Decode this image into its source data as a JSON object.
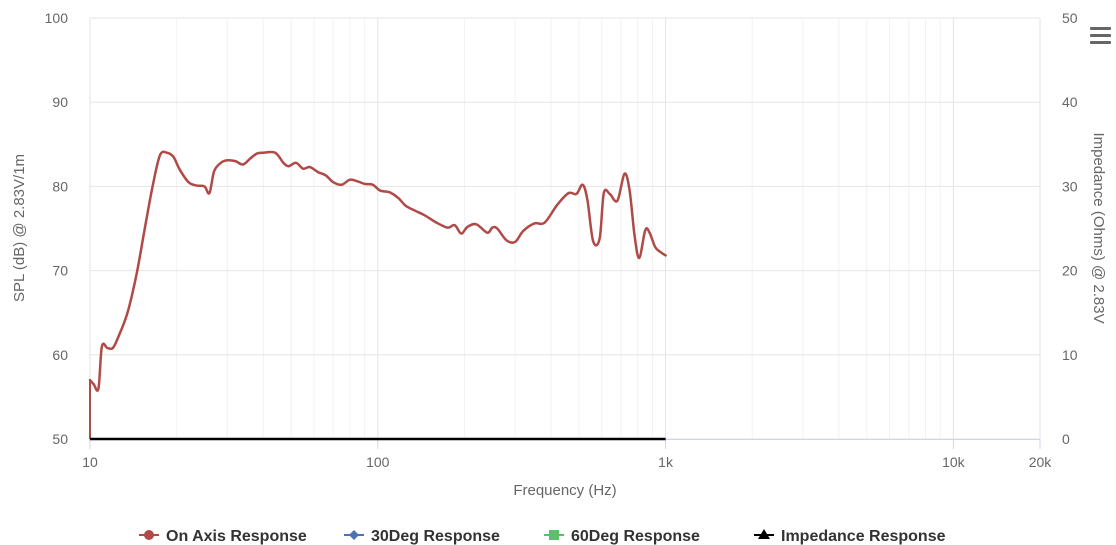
{
  "chart_data": {
    "type": "line",
    "x_scale": "log",
    "xlim": [
      10,
      20000
    ],
    "ylim_left": [
      50,
      100
    ],
    "ylim_right": [
      0,
      50
    ],
    "x_tick_values": [
      10,
      100,
      1000,
      10000,
      20000
    ],
    "x_tick_labels": [
      "10",
      "100",
      "1k",
      "10k",
      "20k"
    ],
    "y_left_ticks": [
      50,
      60,
      70,
      80,
      90,
      100
    ],
    "y_left_tick_labels": [
      "50",
      "60",
      "70",
      "80",
      "90",
      "100"
    ],
    "y_right_ticks": [
      0,
      10,
      20,
      30,
      40,
      50
    ],
    "y_right_tick_labels": [
      "0",
      "10",
      "20",
      "30",
      "40",
      "50"
    ],
    "xlabel": "Frequency (Hz)",
    "ylabel_left": "SPL (dB) @ 2.83V/1m",
    "ylabel_right": "Impedance (Ohms) @ 2.83V",
    "grid": true,
    "legend_position": "bottom-center",
    "series": [
      {
        "name": "On Axis Response",
        "color": "#b04a47",
        "marker": "circle",
        "axis": "left",
        "x": [
          10,
          10.3,
          10.7,
          11,
          11.5,
          12,
          12.5,
          13.5,
          14.5,
          15.5,
          16.5,
          17.5,
          18.5,
          19.5,
          20.5,
          22,
          23.5,
          25,
          26,
          27,
          28.5,
          30,
          32,
          34,
          36,
          38,
          40,
          44,
          47,
          49,
          52,
          55,
          58,
          62,
          66,
          70,
          75,
          80,
          85,
          90,
          96,
          102,
          110,
          118,
          125,
          135,
          145,
          160,
          175,
          185,
          195,
          205,
          220,
          240,
          250,
          260,
          280,
          300,
          320,
          350,
          380,
          420,
          460,
          490,
          515,
          535,
          560,
          590,
          610,
          640,
          680,
          720,
          750,
          780,
          810,
          850,
          880,
          920,
          960,
          1000
        ],
        "y": [
          57,
          56.5,
          56,
          61,
          60.8,
          60.8,
          62,
          65,
          69.5,
          75,
          80,
          83.7,
          84,
          83.5,
          82,
          80.5,
          80.1,
          80,
          79.2,
          81.8,
          82.8,
          83.1,
          83,
          82.6,
          83.3,
          83.9,
          84,
          84,
          82.8,
          82.4,
          82.8,
          82.1,
          82.3,
          81.7,
          81.3,
          80.5,
          80.2,
          80.8,
          80.6,
          80.3,
          80.2,
          79.5,
          79.3,
          78.6,
          77.7,
          77.1,
          76.6,
          75.7,
          75.1,
          75.4,
          74.4,
          75.2,
          75.5,
          74.5,
          75.1,
          75,
          73.6,
          73.4,
          74.7,
          75.6,
          75.7,
          77.8,
          79.2,
          79.1,
          80.2,
          78.4,
          73.5,
          73.8,
          79.2,
          79.1,
          78.3,
          81.5,
          79.5,
          74.2,
          71.5,
          74.8,
          74.5,
          72.8,
          72.2,
          71.8
        ]
      },
      {
        "name": "30Deg Response",
        "color": "#4a72b6",
        "marker": "diamond",
        "axis": "left",
        "x": [],
        "y": []
      },
      {
        "name": "60Deg Response",
        "color": "#5bbf6b",
        "marker": "square",
        "axis": "left",
        "x": [],
        "y": []
      },
      {
        "name": "Impedance Response",
        "color": "#000000",
        "marker": "triangle",
        "axis": "right",
        "x": [
          10,
          1000
        ],
        "y": [
          0,
          0
        ]
      }
    ]
  },
  "menu": {
    "icon": "hamburger-menu-icon"
  }
}
